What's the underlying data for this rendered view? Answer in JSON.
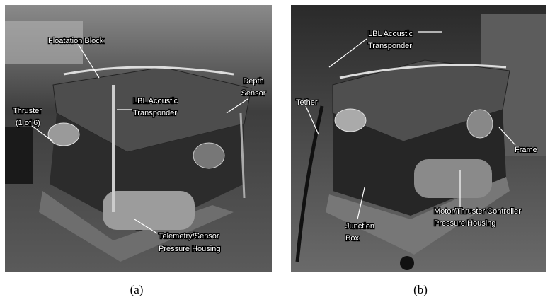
{
  "panels": [
    {
      "caption": "(a)",
      "labels": [
        {
          "lines": [
            "Floatation Block"
          ]
        },
        {
          "lines": [
            "LBL Acoustic",
            "Transponder"
          ]
        },
        {
          "lines": [
            "Depth",
            "Sensor"
          ]
        },
        {
          "lines": [
            "Thruster",
            "(1 of 6)"
          ]
        },
        {
          "lines": [
            "Telemetry/Sensor",
            "Pressure Housing"
          ]
        }
      ]
    },
    {
      "caption": "(b)",
      "labels": [
        {
          "lines": [
            "LBL Acoustic",
            "Transponder"
          ]
        },
        {
          "lines": [
            "Tether"
          ]
        },
        {
          "lines": [
            "Frame"
          ]
        },
        {
          "lines": [
            "Junction",
            "Box"
          ]
        },
        {
          "lines": [
            "Motor/Thruster Controller",
            "Pressure Housing"
          ]
        }
      ]
    }
  ]
}
